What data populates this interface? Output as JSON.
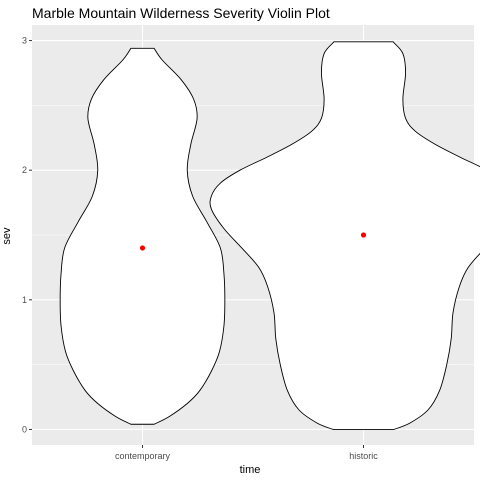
{
  "chart_data": {
    "type": "violin",
    "title": "Marble Mountain Wilderness Severity Violin Plot",
    "xlabel": "time",
    "ylabel": "sev",
    "categories": [
      "contemporary",
      "historic"
    ],
    "ylim": [
      -0.12,
      3.12
    ],
    "yticks": [
      0,
      1,
      2,
      3
    ],
    "grid": true,
    "legend": "none",
    "colors": {
      "panel": "#ebebeb",
      "grid": "#ffffff",
      "violin_fill": "#ffffff",
      "violin_line": "#000000",
      "point": "#ff0000"
    },
    "series": [
      {
        "category": "contemporary",
        "mean": 1.4,
        "profile": [
          [
            0.04,
            0.13
          ],
          [
            0.1,
            0.3
          ],
          [
            0.2,
            0.5
          ],
          [
            0.3,
            0.64
          ],
          [
            0.45,
            0.77
          ],
          [
            0.6,
            0.86
          ],
          [
            0.8,
            0.91
          ],
          [
            1.0,
            0.92
          ],
          [
            1.2,
            0.91
          ],
          [
            1.4,
            0.87
          ],
          [
            1.6,
            0.72
          ],
          [
            1.8,
            0.56
          ],
          [
            2.0,
            0.5
          ],
          [
            2.2,
            0.54
          ],
          [
            2.4,
            0.61
          ],
          [
            2.55,
            0.57
          ],
          [
            2.7,
            0.43
          ],
          [
            2.85,
            0.22
          ],
          [
            2.94,
            0.13
          ]
        ]
      },
      {
        "category": "historic",
        "mean": 1.5,
        "profile": [
          [
            0.0,
            0.34
          ],
          [
            0.05,
            0.52
          ],
          [
            0.15,
            0.72
          ],
          [
            0.3,
            0.85
          ],
          [
            0.5,
            0.93
          ],
          [
            0.7,
            0.98
          ],
          [
            0.9,
            1.0
          ],
          [
            1.1,
            1.07
          ],
          [
            1.25,
            1.17
          ],
          [
            1.4,
            1.36
          ],
          [
            1.55,
            1.56
          ],
          [
            1.7,
            1.7
          ],
          [
            1.8,
            1.7
          ],
          [
            1.9,
            1.6
          ],
          [
            2.0,
            1.38
          ],
          [
            2.1,
            1.08
          ],
          [
            2.2,
            0.8
          ],
          [
            2.3,
            0.58
          ],
          [
            2.4,
            0.47
          ],
          [
            2.55,
            0.44
          ],
          [
            2.75,
            0.47
          ],
          [
            2.9,
            0.44
          ],
          [
            2.99,
            0.33
          ]
        ]
      }
    ]
  }
}
